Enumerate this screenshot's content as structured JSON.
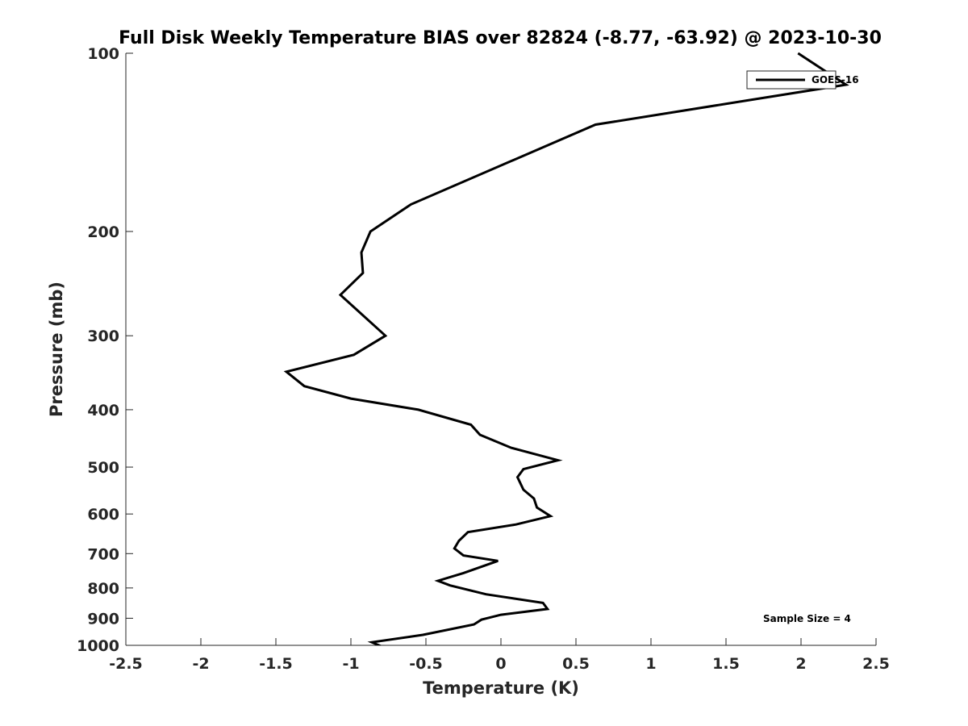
{
  "chart_data": {
    "type": "line",
    "title": "Full Disk Weekly Temperature BIAS over 82824 (-8.77, -63.92) @ 2023-10-30",
    "xlabel": "Temperature (K)",
    "ylabel": "Pressure (mb)",
    "xlim": [
      -2.5,
      2.5
    ],
    "ylim": [
      100,
      1000
    ],
    "y_scale": "log",
    "y_reversed": true,
    "grid": false,
    "legend_position": "top-right",
    "x_ticks": [
      -2.5,
      -2,
      -1.5,
      -1,
      -0.5,
      0,
      0.5,
      1,
      1.5,
      2,
      2.5
    ],
    "x_tick_labels": [
      "-2.5",
      "-2",
      "-1.5",
      "-1",
      "-0.5",
      "0",
      "0.5",
      "1",
      "1.5",
      "2",
      "2.5"
    ],
    "y_ticks": [
      100,
      200,
      300,
      400,
      500,
      600,
      700,
      800,
      900,
      1000
    ],
    "y_tick_labels": [
      "100",
      "200",
      "300",
      "400",
      "500",
      "600",
      "700",
      "800",
      "900",
      "1000"
    ],
    "annotation": "Sample Size = 4",
    "series": [
      {
        "name": "GOES-16",
        "color": "#000000",
        "points": [
          [
            1.98,
            100
          ],
          [
            2.3,
            113
          ],
          [
            0.63,
            132
          ],
          [
            -0.6,
            180
          ],
          [
            -0.87,
            200
          ],
          [
            -0.93,
            217
          ],
          [
            -0.92,
            235
          ],
          [
            -1.07,
            256
          ],
          [
            -0.77,
            300
          ],
          [
            -0.98,
            323
          ],
          [
            -1.43,
            345
          ],
          [
            -1.31,
            365
          ],
          [
            -1.0,
            383
          ],
          [
            -0.55,
            400
          ],
          [
            -0.2,
            424
          ],
          [
            -0.14,
            441
          ],
          [
            0.07,
            464
          ],
          [
            0.38,
            487
          ],
          [
            0.15,
            504
          ],
          [
            0.11,
            520
          ],
          [
            0.15,
            546
          ],
          [
            0.22,
            565
          ],
          [
            0.24,
            585
          ],
          [
            0.33,
            605
          ],
          [
            0.1,
            625
          ],
          [
            -0.22,
            644
          ],
          [
            -0.28,
            666
          ],
          [
            -0.31,
            686
          ],
          [
            -0.25,
            705
          ],
          [
            -0.02,
            720
          ],
          [
            -0.25,
            755
          ],
          [
            -0.42,
            778
          ],
          [
            -0.34,
            792
          ],
          [
            -0.1,
            820
          ],
          [
            0.28,
            848
          ],
          [
            0.31,
            868
          ],
          [
            0.0,
            888
          ],
          [
            -0.13,
            905
          ],
          [
            -0.18,
            922
          ],
          [
            -0.52,
            960
          ],
          [
            -0.86,
            988
          ],
          [
            -0.8,
            1003
          ],
          [
            -0.42,
            1020
          ]
        ]
      }
    ]
  }
}
